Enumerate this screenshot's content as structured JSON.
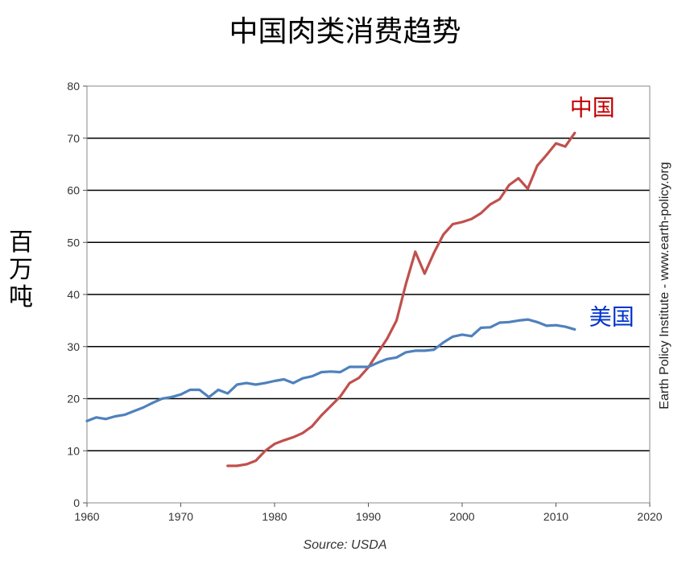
{
  "title": "中国肉类消费趋势",
  "y_axis_label": "百万吨",
  "source": "Source: USDA",
  "watermark": "Earth Policy Institute - www.earth-policy.org",
  "chart_data": {
    "type": "line",
    "x_range": [
      1960,
      2020
    ],
    "ylim": [
      0,
      80
    ],
    "x_ticks": [
      1960,
      1970,
      1980,
      1990,
      2000,
      2010,
      2020
    ],
    "y_ticks": [
      0,
      10,
      20,
      30,
      40,
      50,
      60,
      70,
      80
    ],
    "grid": "horizontal",
    "series": [
      {
        "name": "中国",
        "color": "#c0504d",
        "x": [
          1975,
          1976,
          1977,
          1978,
          1979,
          1980,
          1981,
          1982,
          1983,
          1984,
          1985,
          1986,
          1987,
          1988,
          1989,
          1990,
          1991,
          1992,
          1993,
          1994,
          1995,
          1996,
          1997,
          1998,
          1999,
          2000,
          2001,
          2002,
          2003,
          2004,
          2005,
          2006,
          2007,
          2008,
          2009,
          2010,
          2011,
          2012
        ],
        "values": [
          7.1,
          7.1,
          7.4,
          8.1,
          10.0,
          11.3,
          12.0,
          12.6,
          13.4,
          14.7,
          16.8,
          18.6,
          20.4,
          23.0,
          24.0,
          26.0,
          28.8,
          31.5,
          35.0,
          42.0,
          48.2,
          44.0,
          48.0,
          51.5,
          53.5,
          53.9,
          54.5,
          55.6,
          57.3,
          58.3,
          61.0,
          62.3,
          60.3,
          64.7,
          66.8,
          69.0,
          68.4,
          71.0
        ]
      },
      {
        "name": "美国",
        "color": "#4f81bd",
        "x": [
          1960,
          1961,
          1962,
          1963,
          1964,
          1965,
          1966,
          1967,
          1968,
          1969,
          1970,
          1971,
          1972,
          1973,
          1974,
          1975,
          1976,
          1977,
          1978,
          1979,
          1980,
          1981,
          1982,
          1983,
          1984,
          1985,
          1986,
          1987,
          1988,
          1989,
          1990,
          1991,
          1992,
          1993,
          1994,
          1995,
          1996,
          1997,
          1998,
          1999,
          2000,
          2001,
          2002,
          2003,
          2004,
          2005,
          2006,
          2007,
          2008,
          2009,
          2010,
          2011,
          2012
        ],
        "values": [
          15.7,
          16.4,
          16.1,
          16.6,
          16.9,
          17.6,
          18.3,
          19.2,
          20.0,
          20.3,
          20.8,
          21.7,
          21.7,
          20.3,
          21.7,
          21.0,
          22.7,
          23.0,
          22.7,
          23.0,
          23.4,
          23.7,
          23.0,
          23.9,
          24.3,
          25.1,
          25.2,
          25.1,
          26.1,
          26.1,
          26.1,
          26.9,
          27.6,
          27.9,
          28.9,
          29.2,
          29.2,
          29.4,
          30.8,
          31.9,
          32.3,
          32.0,
          33.6,
          33.7,
          34.6,
          34.7,
          35.0,
          35.2,
          34.7,
          34.0,
          34.1,
          33.8,
          33.3
        ]
      }
    ]
  }
}
